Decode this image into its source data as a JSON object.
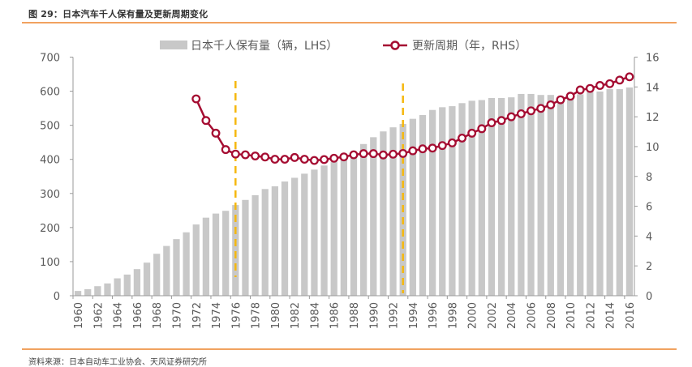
{
  "figure": {
    "title": "图 29：日本汽车千人保有量及更新周期变化",
    "source": "资料来源：日本自动车工业协会、天风证券研究所"
  },
  "colors": {
    "bar": "#c8c8c8",
    "line": "#a50d32",
    "marker_fill": "#ffffff",
    "dashed_marker": "#f5b80f",
    "axis": "#9a9a9a",
    "text": "#595959",
    "rule": "#f1a260"
  },
  "chart_data": {
    "type": "bar+line",
    "title": "日本汽车千人保有量及更新周期变化",
    "xlabel": "",
    "x": [
      1960,
      1961,
      1962,
      1963,
      1964,
      1965,
      1966,
      1967,
      1968,
      1969,
      1970,
      1971,
      1972,
      1973,
      1974,
      1975,
      1976,
      1977,
      1978,
      1979,
      1980,
      1981,
      1982,
      1983,
      1984,
      1985,
      1986,
      1987,
      1988,
      1989,
      1990,
      1991,
      1992,
      1993,
      1994,
      1995,
      1996,
      1997,
      1998,
      1999,
      2000,
      2001,
      2002,
      2003,
      2004,
      2005,
      2006,
      2007,
      2008,
      2009,
      2010,
      2011,
      2012,
      2013,
      2014,
      2015,
      2016
    ],
    "x_tick_labels": [
      "1960",
      "1962",
      "1964",
      "1966",
      "1968",
      "1970",
      "1972",
      "1974",
      "1976",
      "1978",
      "1980",
      "1982",
      "1984",
      "1986",
      "1988",
      "1990",
      "1992",
      "1994",
      "1996",
      "1998",
      "2000",
      "2002",
      "2004",
      "2006",
      "2008",
      "2010",
      "2012",
      "2014",
      "2016"
    ],
    "left_axis": {
      "label": "",
      "ylim": [
        0,
        700
      ],
      "ticks": [
        0,
        100,
        200,
        300,
        400,
        500,
        600,
        700
      ]
    },
    "right_axis": {
      "label": "",
      "ylim": [
        0,
        16
      ],
      "ticks": [
        0,
        2,
        4,
        6,
        8,
        10,
        12,
        14,
        16
      ]
    },
    "series": [
      {
        "name": "日本千人保有量（辆，LHS）",
        "type": "bar",
        "axis": "left",
        "values": [
          14,
          19,
          28,
          36,
          51,
          62,
          78,
          97,
          123,
          146,
          166,
          186,
          209,
          229,
          241,
          249,
          266,
          281,
          295,
          313,
          321,
          335,
          346,
          358,
          370,
          382,
          393,
          404,
          418,
          445,
          465,
          482,
          494,
          504,
          519,
          530,
          545,
          553,
          556,
          565,
          572,
          574,
          580,
          580,
          582,
          592,
          592,
          589,
          589,
          584,
          586,
          591,
          598,
          599,
          606,
          606,
          611
        ]
      },
      {
        "name": "更新周期（年，RHS）",
        "type": "line",
        "axis": "right",
        "start_year": 1972,
        "values": [
          13.2,
          11.75,
          10.9,
          9.8,
          9.5,
          9.45,
          9.37,
          9.3,
          9.15,
          9.15,
          9.27,
          9.15,
          9.07,
          9.13,
          9.22,
          9.31,
          9.45,
          9.53,
          9.53,
          9.44,
          9.49,
          9.54,
          9.72,
          9.85,
          9.9,
          10.07,
          10.25,
          10.57,
          10.9,
          11.2,
          11.6,
          11.75,
          12.0,
          12.2,
          12.4,
          12.56,
          12.8,
          13.14,
          13.38,
          13.8,
          13.9,
          14.1,
          14.22,
          14.46,
          14.68
        ]
      }
    ],
    "annotations": [
      {
        "type": "vertical-dashed-line",
        "x": 1976
      },
      {
        "type": "vertical-dashed-line",
        "x": 1993
      }
    ],
    "legend": {
      "position": "top-center",
      "items": [
        "日本千人保有量（辆，LHS）",
        "更新周期（年，RHS）"
      ]
    },
    "grid": false
  }
}
